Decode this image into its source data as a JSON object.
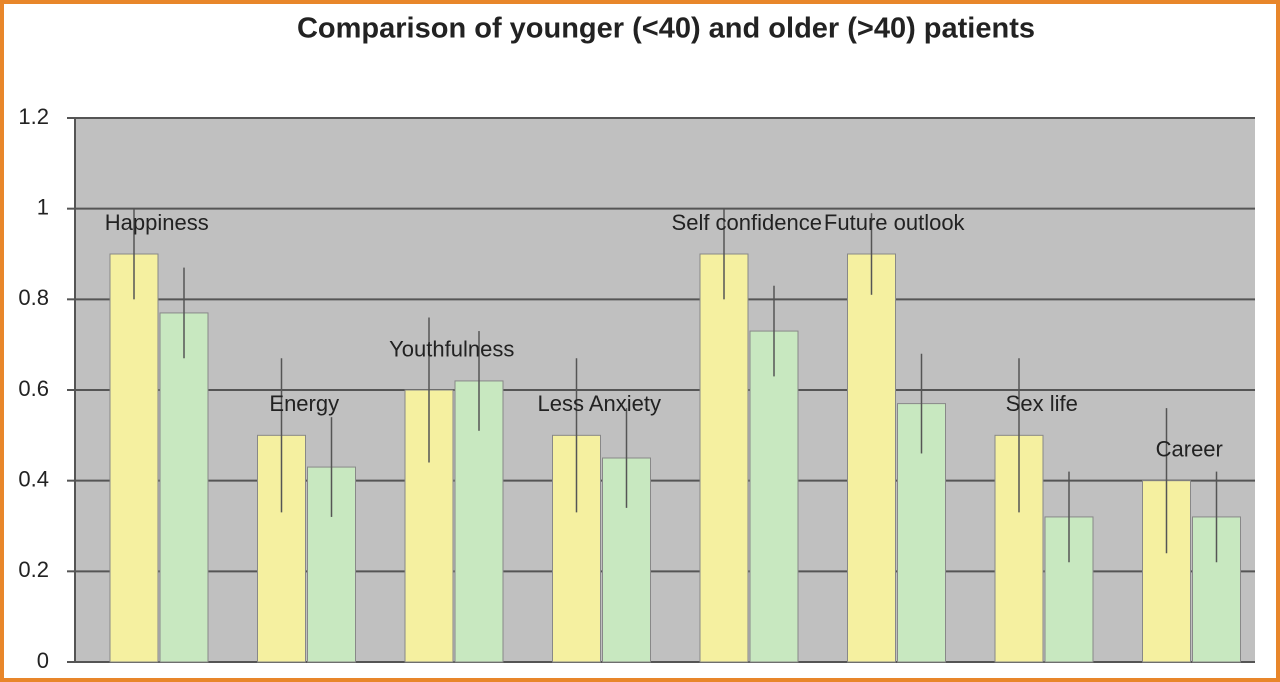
{
  "chart_data": {
    "type": "bar",
    "title": "Comparison of younger (<40) and older (>40) patients",
    "categories": [
      "Happiness",
      "Energy",
      "Youthfulness",
      "Less Anxiety",
      "Self confidence",
      "Future outlook",
      "Sex life",
      "Career"
    ],
    "series": [
      {
        "color": "#f5f0a0",
        "values": [
          0.9,
          0.5,
          0.6,
          0.5,
          0.9,
          0.9,
          0.5,
          0.4
        ],
        "errors": [
          0.1,
          0.17,
          0.16,
          0.17,
          0.1,
          0.09,
          0.17,
          0.16
        ]
      },
      {
        "color": "#c8e8c0",
        "values": [
          0.77,
          0.43,
          0.62,
          0.45,
          0.73,
          0.57,
          0.32,
          0.32
        ],
        "errors": [
          0.1,
          0.11,
          0.11,
          0.11,
          0.1,
          0.11,
          0.1,
          0.1
        ]
      }
    ],
    "ylim": [
      0,
      1.2
    ],
    "yticks": [
      0,
      0.2,
      0.4,
      0.6,
      0.8,
      1,
      1.2
    ],
    "grid": true
  }
}
